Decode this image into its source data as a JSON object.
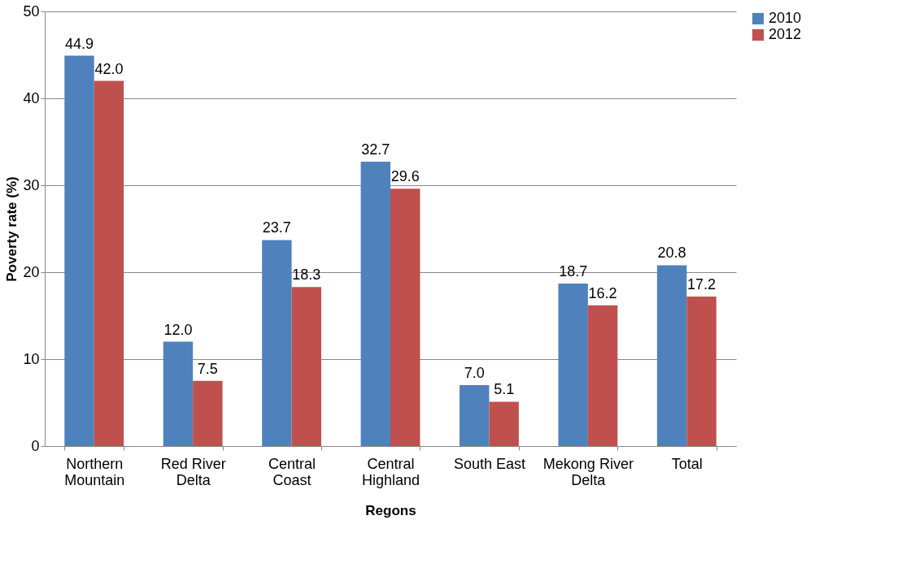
{
  "chart_data": {
    "type": "bar",
    "xlabel": "Regons",
    "ylabel": "Poverty rate (%)",
    "categories": [
      "Northern Mountain",
      "Red River Delta",
      "Central Coast",
      "Central Highland",
      "South East",
      "Mekong River Delta",
      "Total"
    ],
    "series": [
      {
        "name": "2010",
        "color": "#4f81bd",
        "values": [
          44.9,
          12.0,
          23.7,
          32.7,
          7.0,
          18.7,
          20.8
        ],
        "value_labels": [
          "44.9",
          "12.0",
          "23.7",
          "32.7",
          "7.0",
          "18.7",
          "20.8"
        ]
      },
      {
        "name": "2012",
        "color": "#c0504d",
        "values": [
          42.0,
          7.5,
          18.3,
          29.6,
          5.1,
          16.2,
          17.2
        ],
        "value_labels": [
          "42.0",
          "7.5",
          "18.3",
          "29.6",
          "5.1",
          "16.2",
          "17.2"
        ]
      }
    ],
    "ylim": [
      0,
      50
    ],
    "yticks": [
      0,
      10,
      20,
      30,
      40,
      50
    ],
    "grid": "y",
    "legend": "right"
  }
}
